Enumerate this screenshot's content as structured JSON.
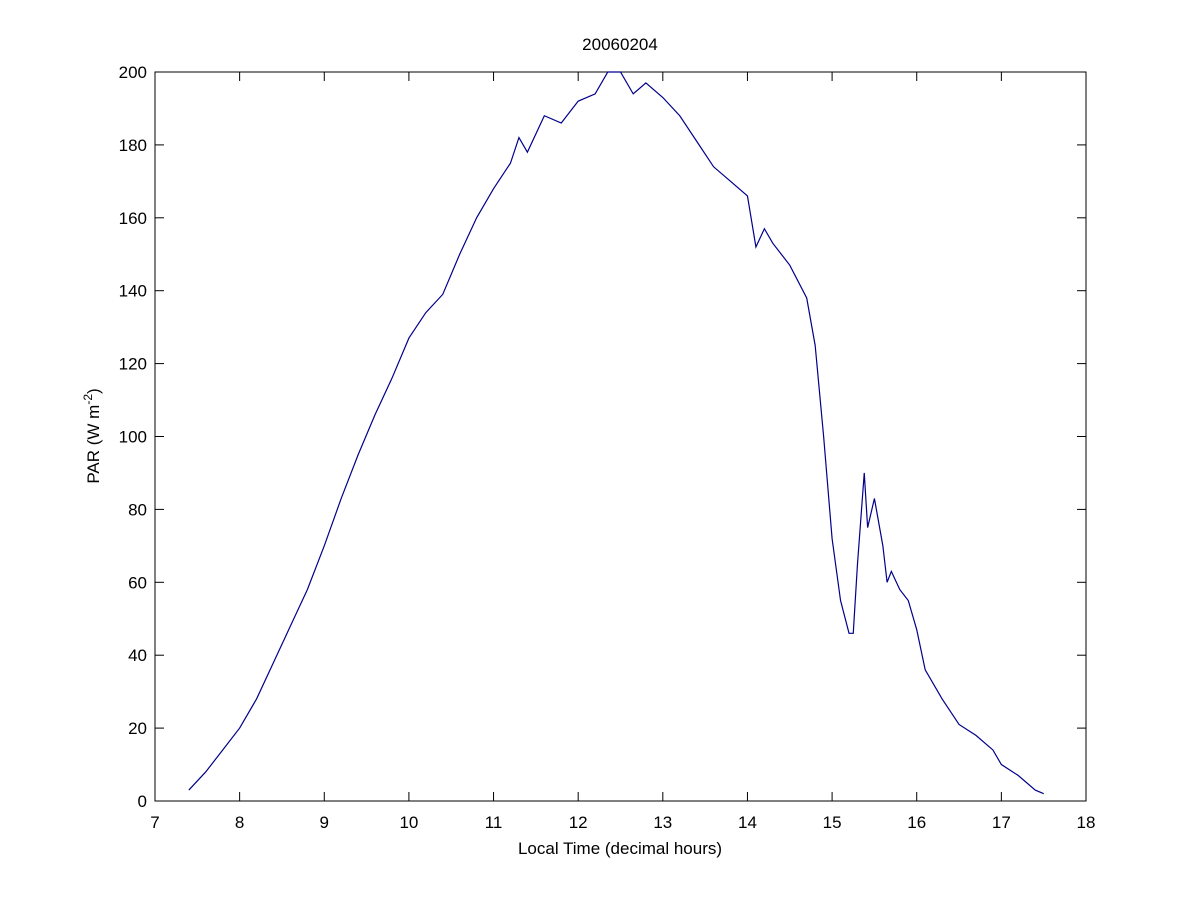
{
  "chart_data": {
    "type": "line",
    "title": "20060204",
    "xlabel": "Local Time (decimal hours)",
    "ylabel": {
      "text": "PAR (W m",
      "superscript": "-2",
      "close": ")"
    },
    "xlim": [
      7,
      18
    ],
    "xticks": [
      7,
      8,
      9,
      10,
      11,
      12,
      13,
      14,
      15,
      16,
      17,
      18
    ],
    "ylim": [
      0,
      200
    ],
    "yticks": [
      0,
      20,
      40,
      60,
      80,
      100,
      120,
      140,
      160,
      180,
      200
    ],
    "grid": false,
    "series": [
      {
        "color": "#00008b",
        "x": [
          7.4,
          7.6,
          7.8,
          8.0,
          8.2,
          8.4,
          8.6,
          8.8,
          9.0,
          9.2,
          9.4,
          9.6,
          9.8,
          10.0,
          10.2,
          10.4,
          10.6,
          10.8,
          11.0,
          11.2,
          11.3,
          11.4,
          11.6,
          11.8,
          12.0,
          12.2,
          12.35,
          12.5,
          12.65,
          12.8,
          13.0,
          13.2,
          13.4,
          13.6,
          13.8,
          14.0,
          14.1,
          14.2,
          14.3,
          14.5,
          14.7,
          14.8,
          14.9,
          15.0,
          15.1,
          15.2,
          15.25,
          15.3,
          15.38,
          15.42,
          15.5,
          15.6,
          15.65,
          15.7,
          15.8,
          15.9,
          16.0,
          16.1,
          16.3,
          16.5,
          16.7,
          16.9,
          17.0,
          17.2,
          17.4,
          17.5
        ],
        "values": [
          3,
          8,
          14,
          20,
          28,
          38,
          48,
          58,
          70,
          83,
          95,
          106,
          116,
          127,
          134,
          139,
          150,
          160,
          168,
          175,
          182,
          178,
          188,
          186,
          192,
          194,
          200,
          200,
          194,
          197,
          193,
          188,
          181,
          174,
          170,
          166,
          152,
          157,
          153,
          147,
          138,
          125,
          100,
          72,
          55,
          46,
          46,
          65,
          90,
          75,
          83,
          70,
          60,
          63,
          58,
          55,
          47,
          36,
          28,
          21,
          18,
          14,
          10,
          7,
          3,
          2
        ]
      }
    ]
  }
}
